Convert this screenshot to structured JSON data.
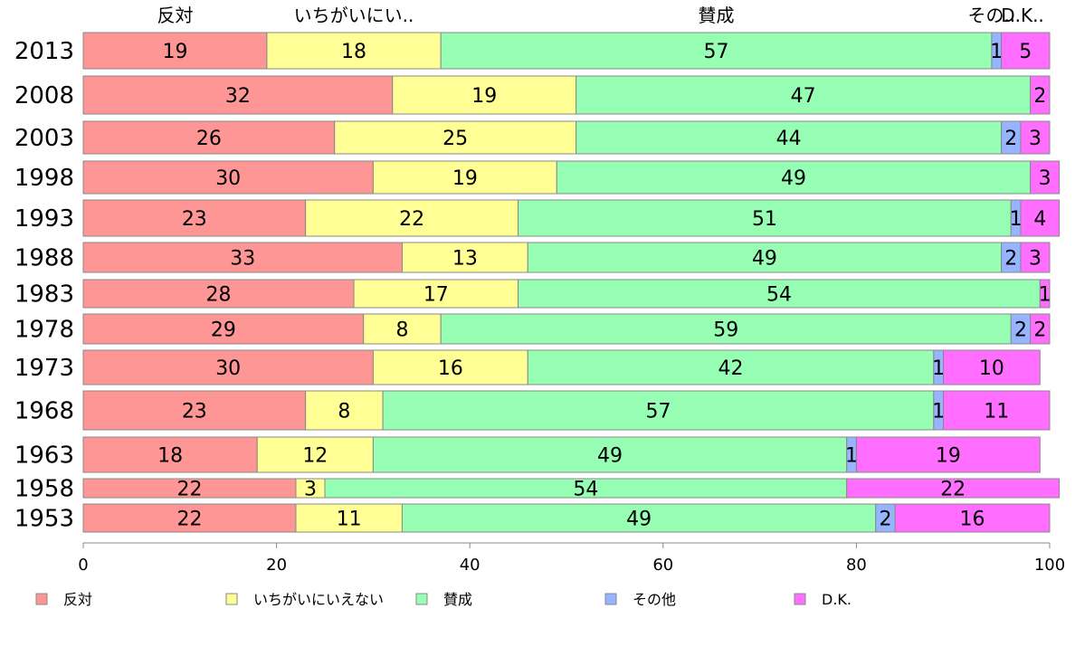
{
  "chart_data": {
    "type": "bar",
    "orientation": "horizontal",
    "stacked": true,
    "categories": [
      "2013",
      "2008",
      "2003",
      "1998",
      "1993",
      "1988",
      "1983",
      "1978",
      "1973",
      "1968",
      "1963",
      "1958",
      "1953"
    ],
    "series": [
      {
        "name": "反対",
        "short_label": "反対",
        "color": "#ff9696",
        "values": [
          19,
          32,
          26,
          30,
          23,
          33,
          28,
          29,
          30,
          23,
          18,
          22,
          22
        ]
      },
      {
        "name": "いちがいにいえない",
        "short_label": "いちがいにい..",
        "color": "#ffff96",
        "values": [
          18,
          19,
          25,
          19,
          22,
          13,
          17,
          8,
          16,
          8,
          12,
          3,
          11
        ]
      },
      {
        "name": "賛成",
        "short_label": "賛成",
        "color": "#96ffb4",
        "values": [
          57,
          47,
          44,
          49,
          51,
          49,
          54,
          59,
          42,
          57,
          49,
          54,
          49
        ]
      },
      {
        "name": "その他",
        "short_label": "その..",
        "color": "#96b4ff",
        "values": [
          1,
          0,
          2,
          0,
          1,
          2,
          0,
          2,
          1,
          1,
          1,
          0,
          2
        ]
      },
      {
        "name": "D.K.",
        "short_label": "D.K..",
        "color": "#ff6eff",
        "values": [
          5,
          2,
          3,
          3,
          4,
          3,
          1,
          2,
          10,
          11,
          19,
          22,
          16
        ]
      }
    ],
    "xlim": [
      0,
      100
    ],
    "xticks": [
      0,
      20,
      40,
      60,
      80,
      100
    ],
    "legend_position": "bottom"
  }
}
